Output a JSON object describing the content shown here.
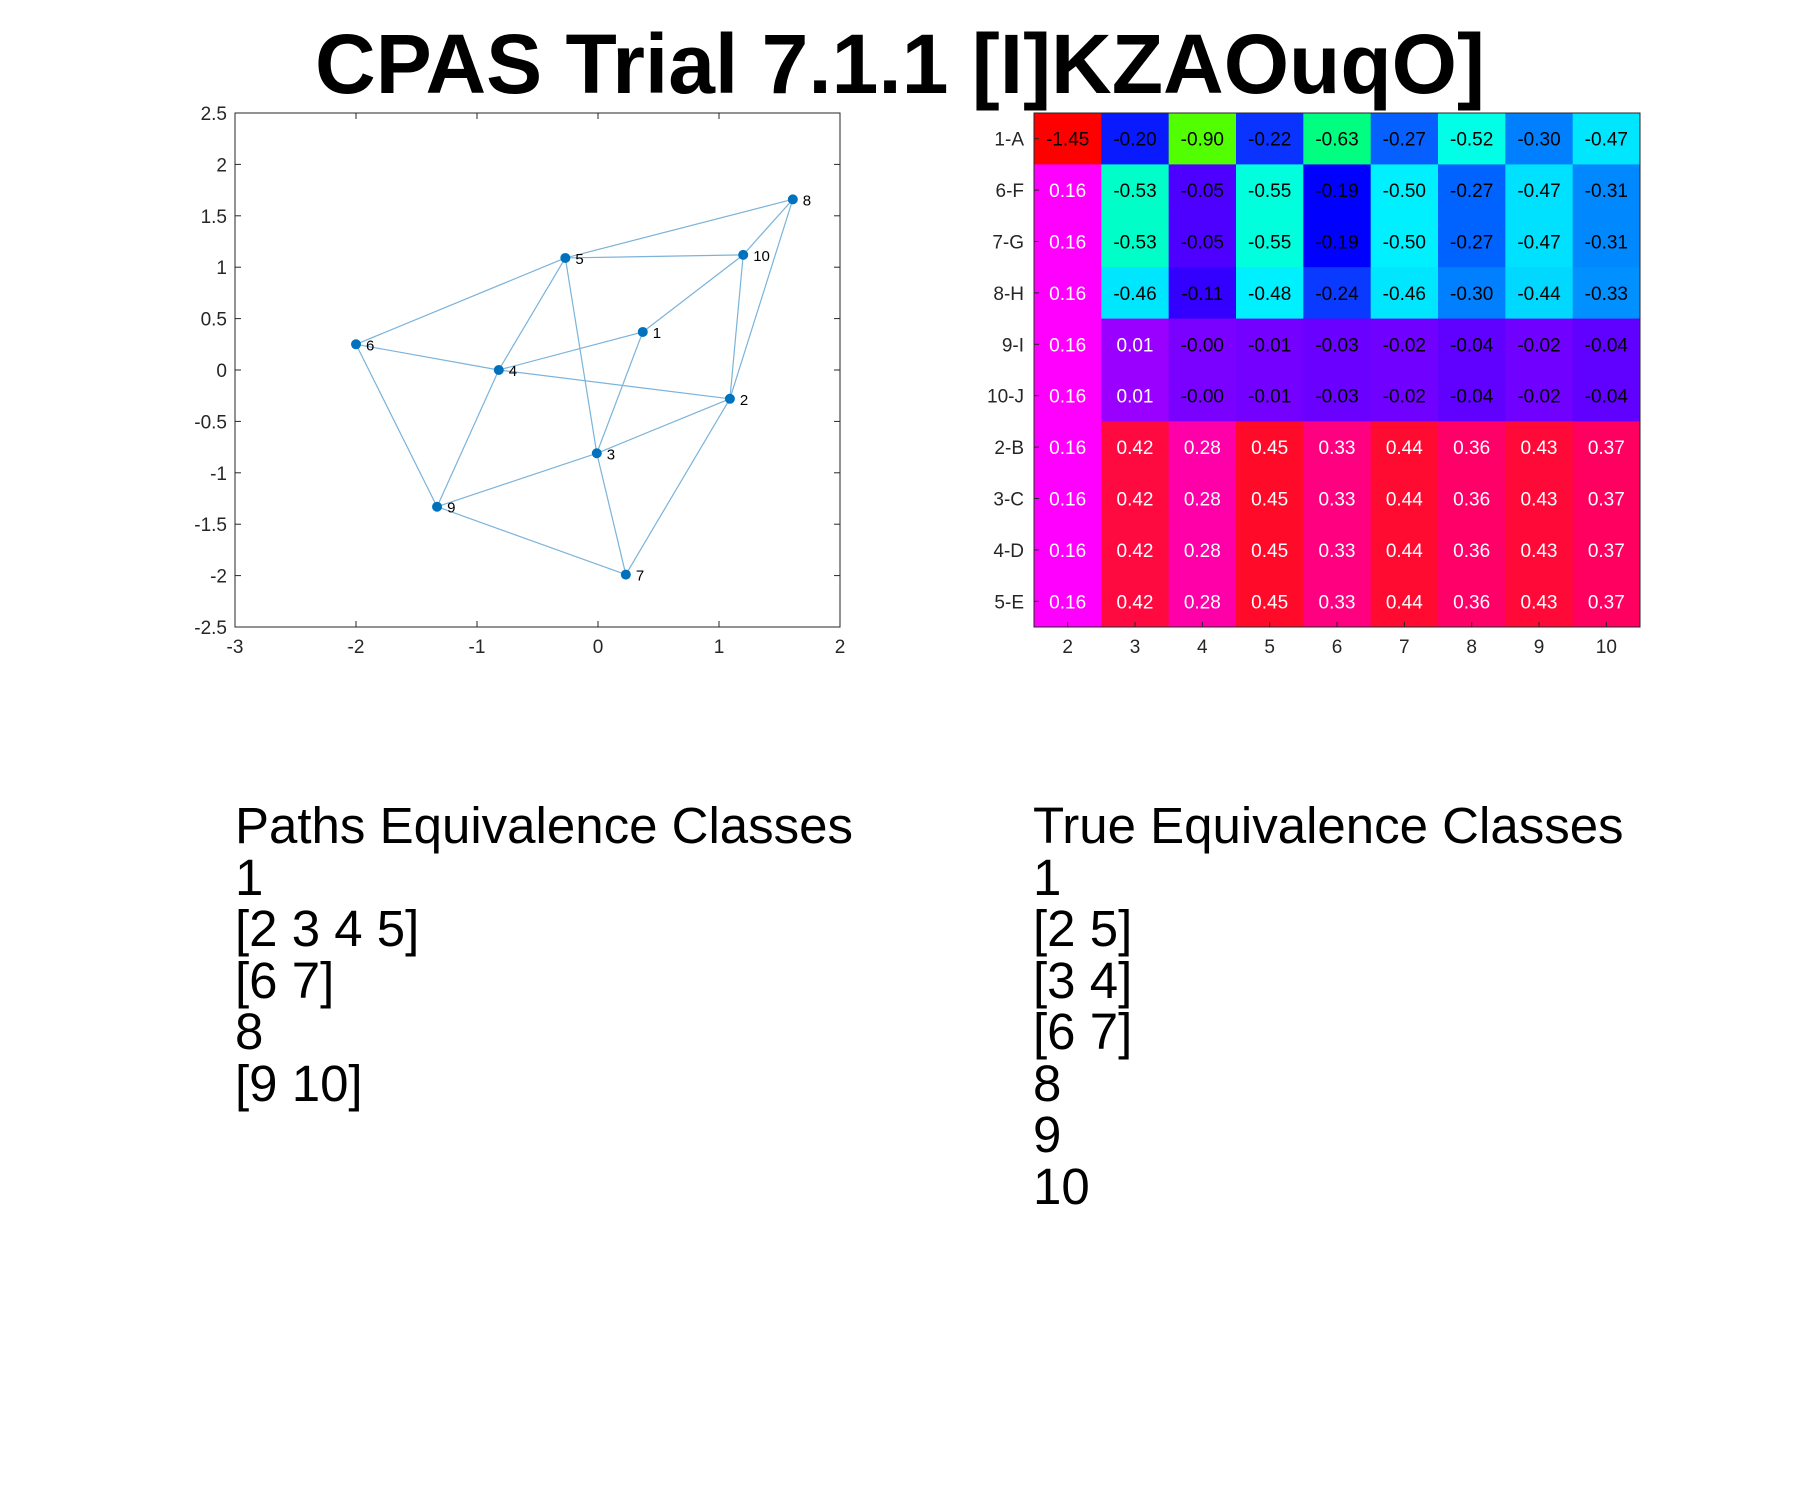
{
  "title": "CPAS Trial 7.1.1 [I]KZAOuqO]",
  "chart_data": [
    {
      "type": "scatter",
      "xlim": [
        -3,
        2
      ],
      "ylim": [
        -2.5,
        2.5
      ],
      "x_ticks": [
        "-3",
        "-2",
        "-1",
        "0",
        "1",
        "2"
      ],
      "y_ticks": [
        "2.5",
        "2",
        "1.5",
        "1",
        "0.5",
        "0",
        "-0.5",
        "-1",
        "-1.5",
        "-2",
        "-2.5"
      ],
      "grid": false,
      "point_color": "#0072BD",
      "edge_color": "#7AB3DB",
      "nodes": [
        {
          "label": "1",
          "x": 0.37,
          "y": 0.37
        },
        {
          "label": "2",
          "x": 1.09,
          "y": -0.28
        },
        {
          "label": "3",
          "x": -0.01,
          "y": -0.81
        },
        {
          "label": "4",
          "x": -0.82,
          "y": 0.0
        },
        {
          "label": "5",
          "x": -0.27,
          "y": 1.09
        },
        {
          "label": "6",
          "x": -2.0,
          "y": 0.25
        },
        {
          "label": "7",
          "x": 0.23,
          "y": -1.99
        },
        {
          "label": "8",
          "x": 1.61,
          "y": 1.66
        },
        {
          "label": "9",
          "x": -1.33,
          "y": -1.33
        },
        {
          "label": "10",
          "x": 1.2,
          "y": 1.12
        }
      ],
      "edges": [
        [
          "6",
          "5"
        ],
        [
          "6",
          "4"
        ],
        [
          "6",
          "9"
        ],
        [
          "5",
          "8"
        ],
        [
          "5",
          "10"
        ],
        [
          "5",
          "4"
        ],
        [
          "5",
          "3"
        ],
        [
          "4",
          "1"
        ],
        [
          "4",
          "2"
        ],
        [
          "4",
          "9"
        ],
        [
          "1",
          "10"
        ],
        [
          "1",
          "3"
        ],
        [
          "8",
          "10"
        ],
        [
          "8",
          "2"
        ],
        [
          "10",
          "2"
        ],
        [
          "2",
          "3"
        ],
        [
          "2",
          "7"
        ],
        [
          "3",
          "9"
        ],
        [
          "3",
          "7"
        ],
        [
          "9",
          "7"
        ]
      ]
    },
    {
      "type": "heatmap",
      "x_labels": [
        "2",
        "3",
        "4",
        "5",
        "6",
        "7",
        "8",
        "9",
        "10"
      ],
      "y_labels": [
        "1-A",
        "6-F",
        "7-G",
        "8-H",
        "9-I",
        "10-J",
        "2-B",
        "3-C",
        "4-D",
        "5-E"
      ],
      "values": [
        [
          "-1.45",
          "-0.20",
          "-0.90",
          "-0.22",
          "-0.63",
          "-0.27",
          "-0.52",
          "-0.30",
          "-0.47"
        ],
        [
          "0.16",
          "-0.53",
          "-0.05",
          "-0.55",
          "-0.19",
          "-0.50",
          "-0.27",
          "-0.47",
          "-0.31"
        ],
        [
          "0.16",
          "-0.53",
          "-0.05",
          "-0.55",
          "-0.19",
          "-0.50",
          "-0.27",
          "-0.47",
          "-0.31"
        ],
        [
          "0.16",
          "-0.46",
          "-0.11",
          "-0.48",
          "-0.24",
          "-0.46",
          "-0.30",
          "-0.44",
          "-0.33"
        ],
        [
          "0.16",
          "0.01",
          "-0.00",
          "-0.01",
          "-0.03",
          "-0.02",
          "-0.04",
          "-0.02",
          "-0.04"
        ],
        [
          "0.16",
          "0.01",
          "-0.00",
          "-0.01",
          "-0.03",
          "-0.02",
          "-0.04",
          "-0.02",
          "-0.04"
        ],
        [
          "0.16",
          "0.42",
          "0.28",
          "0.45",
          "0.33",
          "0.44",
          "0.36",
          "0.43",
          "0.37"
        ],
        [
          "0.16",
          "0.42",
          "0.28",
          "0.45",
          "0.33",
          "0.44",
          "0.36",
          "0.43",
          "0.37"
        ],
        [
          "0.16",
          "0.42",
          "0.28",
          "0.45",
          "0.33",
          "0.44",
          "0.36",
          "0.43",
          "0.37"
        ],
        [
          "0.16",
          "0.42",
          "0.28",
          "0.45",
          "0.33",
          "0.44",
          "0.36",
          "0.43",
          "0.37"
        ]
      ],
      "cell_colors": [
        [
          "#FF0000",
          "#0A1AFF",
          "#52FF00",
          "#0A33FF",
          "#00FF80",
          "#0560FF",
          "#00FFE6",
          "#0080FF",
          "#00E6FF"
        ],
        [
          "#FF00FF",
          "#00FFC8",
          "#4D00FF",
          "#00FFDD",
          "#0000FF",
          "#00F0FF",
          "#0062FF",
          "#00E0FF",
          "#0088FF"
        ],
        [
          "#FF00FF",
          "#00FFC8",
          "#4D00FF",
          "#00FFDD",
          "#0000FF",
          "#00F0FF",
          "#0062FF",
          "#00E0FF",
          "#0088FF"
        ],
        [
          "#FF00FF",
          "#00E6FF",
          "#3300FF",
          "#00F0FF",
          "#0A3AFF",
          "#00E6FF",
          "#0080FF",
          "#00D8FF",
          "#0090FF"
        ],
        [
          "#FF00FF",
          "#9900FF",
          "#7A00FF",
          "#7400FF",
          "#6A00FF",
          "#7000FF",
          "#6000FF",
          "#7000FF",
          "#6000FF"
        ],
        [
          "#FF00FF",
          "#9900FF",
          "#7A00FF",
          "#7400FF",
          "#6A00FF",
          "#7000FF",
          "#6000FF",
          "#7000FF",
          "#6000FF"
        ],
        [
          "#FF00FF",
          "#FF0A40",
          "#FF00A8",
          "#FF0A28",
          "#FF0080",
          "#FF0A30",
          "#FF0068",
          "#FF0A38",
          "#FF0060"
        ],
        [
          "#FF00FF",
          "#FF0A40",
          "#FF00A8",
          "#FF0A28",
          "#FF0080",
          "#FF0A30",
          "#FF0068",
          "#FF0A38",
          "#FF0060"
        ],
        [
          "#FF00FF",
          "#FF0A40",
          "#FF00A8",
          "#FF0A28",
          "#FF0080",
          "#FF0A30",
          "#FF0068",
          "#FF0A38",
          "#FF0060"
        ],
        [
          "#FF00FF",
          "#FF0A40",
          "#FF00A8",
          "#FF0A28",
          "#FF0080",
          "#FF0A30",
          "#FF0068",
          "#FF0A38",
          "#FF0060"
        ]
      ],
      "text_colors": [
        [
          "#000000",
          "#000000",
          "#000000",
          "#000000",
          "#000000",
          "#000000",
          "#000000",
          "#000000",
          "#000000"
        ],
        [
          "#FFFFFF",
          "#000000",
          "#000000",
          "#000000",
          "#000000",
          "#000000",
          "#000000",
          "#000000",
          "#000000"
        ],
        [
          "#FFFFFF",
          "#000000",
          "#000000",
          "#000000",
          "#000000",
          "#000000",
          "#000000",
          "#000000",
          "#000000"
        ],
        [
          "#FFFFFF",
          "#000000",
          "#000000",
          "#000000",
          "#000000",
          "#000000",
          "#000000",
          "#000000",
          "#000000"
        ],
        [
          "#FFFFFF",
          "#FFFFFF",
          "#000000",
          "#000000",
          "#000000",
          "#000000",
          "#000000",
          "#000000",
          "#000000"
        ],
        [
          "#FFFFFF",
          "#FFFFFF",
          "#000000",
          "#000000",
          "#000000",
          "#000000",
          "#000000",
          "#000000",
          "#000000"
        ],
        [
          "#FFFFFF",
          "#FFFFFF",
          "#FFFFFF",
          "#FFFFFF",
          "#FFFFFF",
          "#FFFFFF",
          "#FFFFFF",
          "#FFFFFF",
          "#FFFFFF"
        ],
        [
          "#FFFFFF",
          "#FFFFFF",
          "#FFFFFF",
          "#FFFFFF",
          "#FFFFFF",
          "#FFFFFF",
          "#FFFFFF",
          "#FFFFFF",
          "#FFFFFF"
        ],
        [
          "#FFFFFF",
          "#FFFFFF",
          "#FFFFFF",
          "#FFFFFF",
          "#FFFFFF",
          "#FFFFFF",
          "#FFFFFF",
          "#FFFFFF",
          "#FFFFFF"
        ],
        [
          "#FFFFFF",
          "#FFFFFF",
          "#FFFFFF",
          "#FFFFFF",
          "#FFFFFF",
          "#FFFFFF",
          "#FFFFFF",
          "#FFFFFF",
          "#FFFFFF"
        ]
      ]
    }
  ],
  "paths_classes": {
    "heading": "Paths Equivalence Classes",
    "items": [
      "1",
      "[2 3 4 5]",
      "[6 7]",
      "8",
      "[9 10]"
    ]
  },
  "true_classes": {
    "heading": "True Equivalence Classes",
    "items": [
      "1",
      "[2 5]",
      "[3 4]",
      "[6 7]",
      "8",
      "9",
      "10"
    ]
  }
}
